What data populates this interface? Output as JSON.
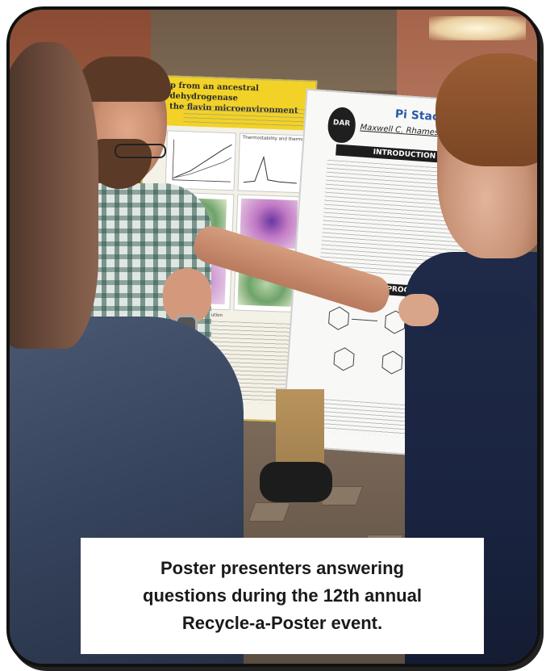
{
  "caption": {
    "line1": "Poster presenters answering",
    "line2": "questions during the 12th annual",
    "line3": "Recycle-a-Poster event."
  },
  "poster_left": {
    "title_line1": "p from an ancestral dehydrogenase",
    "title_line2": "the flavin microenvironment",
    "section1": "Thermostability and thermal melt",
    "section2": "Iterative directed evolution"
  },
  "poster_right": {
    "logo": "DAR",
    "title": "Pi Stacking",
    "authors": "Maxwell C. Rhames,¹ Ann M",
    "section_intro": "INTRODUCTION",
    "section_synth": "SYNTHETIC PROCEDURES"
  },
  "colors": {
    "frame_border": "#111111",
    "caption_bg": "#ffffff",
    "caption_text": "#1a1a1a",
    "poster_header_yellow": "#f2d226",
    "poster_title_blue": "#2b5aa8"
  }
}
